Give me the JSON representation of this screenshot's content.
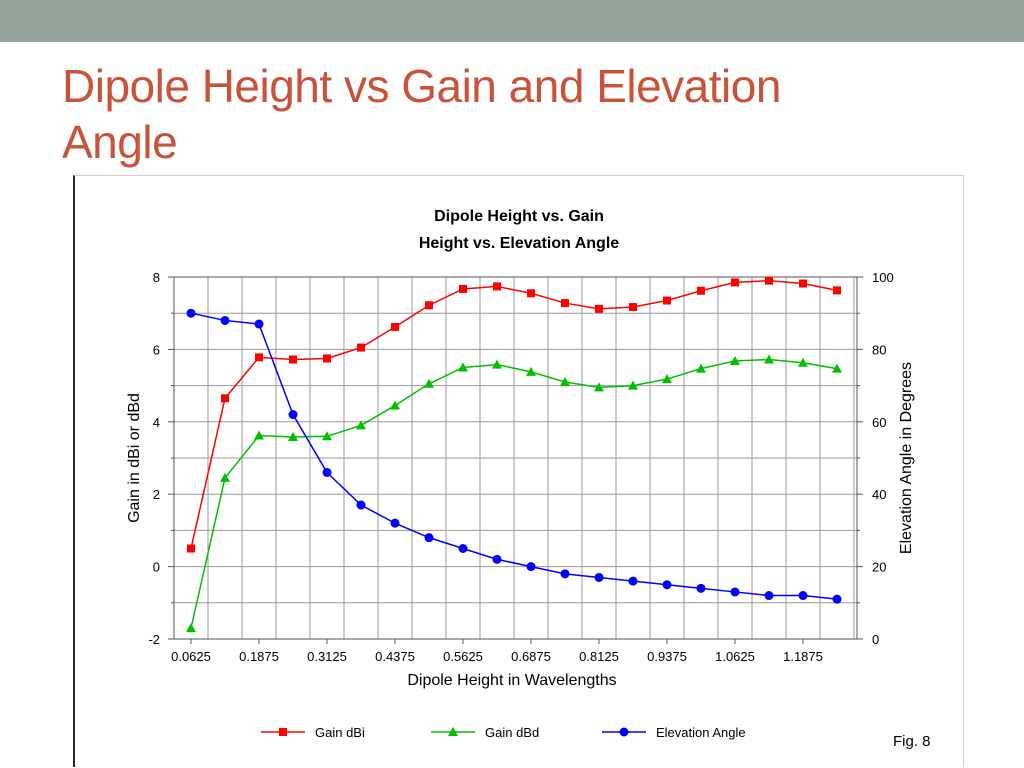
{
  "slide": {
    "title_line1": "Dipole Height vs Gain and Elevation",
    "title_line2": "Angle",
    "fig_label": "Fig. 8"
  },
  "colors": {
    "topbar": "#95a39b",
    "title": "#c8533a",
    "gain_dbi": "#ff0000",
    "gain_dbd": "#00c000",
    "elevation": "#0000ff",
    "grid": "#9a9a9a"
  },
  "chart_data": {
    "type": "line",
    "title": "Dipole Height vs. Gain",
    "subtitle": "Height vs. Elevation Angle",
    "xlabel": "Dipole Height in Wavelengths",
    "ylabel": "Gain in dBi or dBd",
    "y2label": "Elevation Angle in Degrees",
    "x": [
      0.0625,
      0.125,
      0.1875,
      0.25,
      0.3125,
      0.375,
      0.4375,
      0.5,
      0.5625,
      0.625,
      0.6875,
      0.75,
      0.8125,
      0.875,
      0.9375,
      1.0,
      1.0625,
      1.125,
      1.1875,
      1.25
    ],
    "xticks": [
      "0.0625",
      "0.1875",
      "0.3125",
      "0.4375",
      "0.5625",
      "0.6875",
      "0.8125",
      "0.9375",
      "1.0625",
      "1.1875"
    ],
    "xlim": [
      0.0625,
      1.25
    ],
    "ylim": [
      -2,
      8
    ],
    "yticks": [
      "8",
      "6",
      "4",
      "2",
      "0",
      "-2"
    ],
    "y2lim": [
      0,
      100
    ],
    "y2ticks": [
      "100",
      "80",
      "60",
      "40",
      "20",
      "0"
    ],
    "grid": true,
    "legend_position": "bottom",
    "series": [
      {
        "name": "Gain dBi",
        "axis": "left",
        "marker": "square",
        "color": "#ff0000",
        "values": [
          0.5,
          4.65,
          5.78,
          5.72,
          5.75,
          6.05,
          6.62,
          7.22,
          7.67,
          7.74,
          7.55,
          7.28,
          7.12,
          7.17,
          7.35,
          7.62,
          7.85,
          7.9,
          7.82,
          7.63
        ]
      },
      {
        "name": "Gain dBd",
        "axis": "left",
        "marker": "triangle",
        "color": "#00c000",
        "values": [
          -1.7,
          2.45,
          3.62,
          3.58,
          3.6,
          3.9,
          4.45,
          5.05,
          5.5,
          5.58,
          5.38,
          5.1,
          4.95,
          5.0,
          5.18,
          5.47,
          5.68,
          5.72,
          5.63,
          5.47
        ]
      },
      {
        "name": "Elevation Angle",
        "axis": "right",
        "marker": "circle",
        "color": "#0000ff",
        "values": [
          90,
          88,
          87,
          62,
          46,
          37,
          32,
          28,
          25,
          22,
          20,
          18,
          17,
          16,
          15,
          14,
          13,
          12,
          12,
          11
        ]
      }
    ]
  }
}
